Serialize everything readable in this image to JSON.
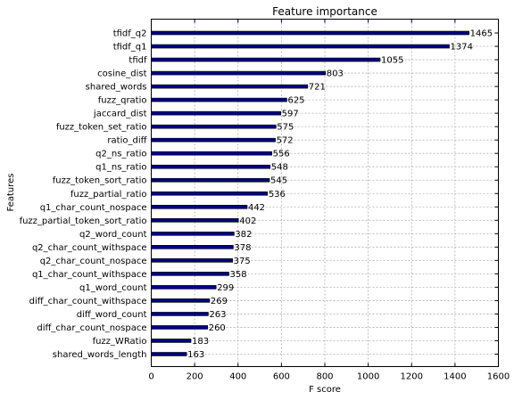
{
  "chart_data": {
    "type": "bar",
    "orientation": "horizontal",
    "title": "Feature importance",
    "xlabel": "F score",
    "ylabel": "Features",
    "xlim": [
      0,
      1600
    ],
    "xticks": [
      0,
      200,
      400,
      600,
      800,
      1000,
      1200,
      1400,
      1600
    ],
    "grid": true,
    "bar_color": "#000080",
    "categories": [
      "tfidf_q2",
      "tfidf_q1",
      "tfidf",
      "cosine_dist",
      "shared_words",
      "fuzz_qratio",
      "jaccard_dist",
      "fuzz_token_set_ratio",
      "ratio_diff",
      "q2_ns_ratio",
      "q1_ns_ratio",
      "fuzz_token_sort_ratio",
      "fuzz_partial_ratio",
      "q1_char_count_nospace",
      "fuzz_partial_token_sort_ratio",
      "q2_word_count",
      "q2_char_count_withspace",
      "q2_char_count_nospace",
      "q1_char_count_withspace",
      "q1_word_count",
      "diff_char_count_withspace",
      "diff_word_count",
      "diff_char_count_nospace",
      "fuzz_WRatio",
      "shared_words_length"
    ],
    "values": [
      1465,
      1374,
      1055,
      803,
      721,
      625,
      597,
      575,
      572,
      556,
      548,
      545,
      536,
      442,
      402,
      382,
      378,
      375,
      358,
      299,
      269,
      263,
      260,
      183,
      163
    ]
  }
}
